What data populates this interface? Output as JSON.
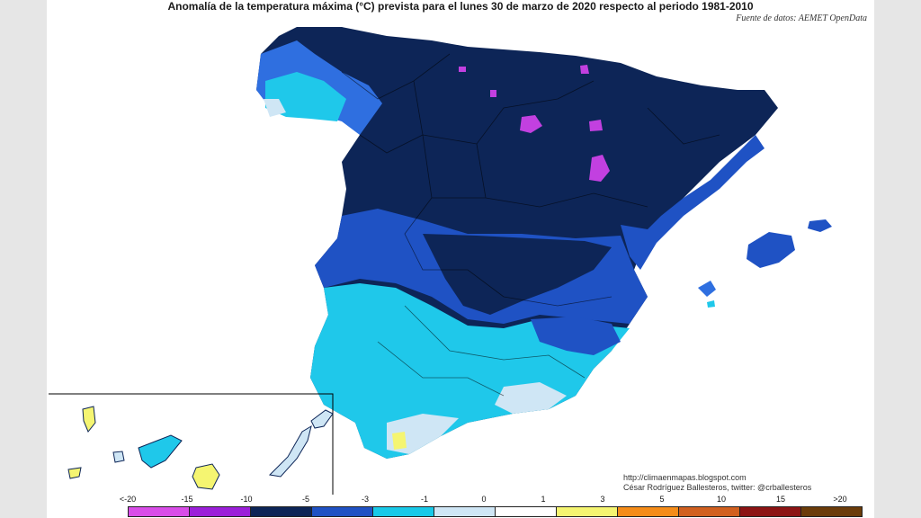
{
  "title": "Anomalía de la temperatura máxima (°C) prevista para el lunes 30 de marzo de 2020 respecto al periodo 1981-2010",
  "source": "Fuente de datos: AEMET OpenData",
  "credits": {
    "blog": "http://climaenmapas.blogspot.com",
    "author": "César Rodríguez Ballesteros, twitter: @crballesteros"
  },
  "legend": {
    "labels": [
      "<-20",
      "-15",
      "-10",
      "-5",
      "-3",
      "-1",
      "0",
      "1",
      "3",
      "5",
      "10",
      "15",
      ">20"
    ],
    "colors": [
      "#d94de8",
      "#9b1fd9",
      "#0d2557",
      "#1f52c4",
      "#19c9e8",
      "#cfe6f5",
      "#ffffff",
      "#f5f571",
      "#f58c19",
      "#d1601f",
      "#8c1414",
      "#6b3c0a"
    ]
  },
  "colors": {
    "deep_navy": "#0d2557",
    "blue": "#1f52c4",
    "mid_blue": "#2f6fe0",
    "cyan": "#1fc8ea",
    "pale": "#cfe6f5",
    "yellow": "#f5f571",
    "purple": "#c240e0"
  }
}
